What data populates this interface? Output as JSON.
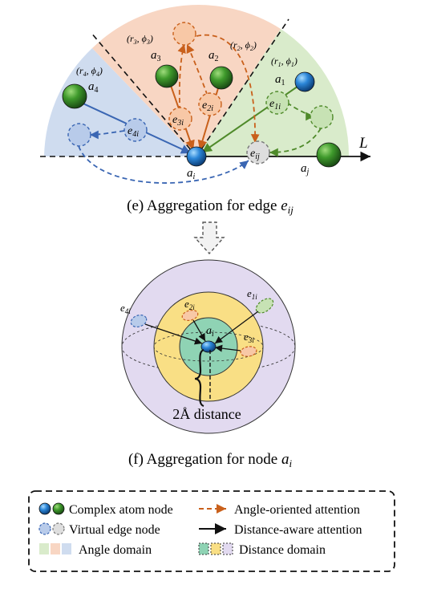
{
  "diagram_e": {
    "caption": "(e) Aggregation for edge e_ij",
    "caption_text": "(e) Aggregation for edge ",
    "caption_var": "e",
    "caption_sub": "ij",
    "axis_label": "L",
    "atoms": {
      "a1": {
        "base": "a",
        "sub": "1"
      },
      "a2": {
        "base": "a",
        "sub": "2"
      },
      "a3": {
        "base": "a",
        "sub": "3"
      },
      "a4": {
        "base": "a",
        "sub": "4"
      },
      "ai": {
        "base": "a",
        "sub": "i"
      },
      "aj": {
        "base": "a",
        "sub": "j"
      }
    },
    "polar_labels": {
      "p1": {
        "r": "r",
        "r_sub": "1",
        "phi": "ϕ",
        "phi_sub": "1"
      },
      "p2": {
        "r": "r",
        "r_sub": "2",
        "phi": "ϕ",
        "phi_sub": "2"
      },
      "p3": {
        "r": "r",
        "r_sub": "3",
        "phi": "ϕ",
        "phi_sub": "3"
      },
      "p4": {
        "r": "r",
        "r_sub": "4",
        "phi": "ϕ",
        "phi_sub": "4"
      }
    },
    "edges": {
      "e1i": {
        "base": "e",
        "sub": "1i"
      },
      "e2i": {
        "base": "e",
        "sub": "2i"
      },
      "e3i": {
        "base": "e",
        "sub": "3i"
      },
      "e4i": {
        "base": "e",
        "sub": "4i"
      },
      "eij": {
        "base": "e",
        "sub": "ij"
      }
    }
  },
  "diagram_f": {
    "caption_text": "(f) Aggregation for node ",
    "caption_var": "a",
    "caption_sub": "i",
    "center_atom": {
      "base": "a",
      "sub": "i"
    },
    "distance_label": "2Å distance",
    "edges": {
      "e1i": {
        "base": "e",
        "sub": "1i"
      },
      "e2i": {
        "base": "e",
        "sub": "2i"
      },
      "e3i": {
        "base": "e",
        "sub": "3i"
      },
      "e4i": {
        "base": "e",
        "sub": "4i"
      }
    }
  },
  "legend": {
    "complex_atom": "Complex atom node",
    "virtual_edge": "Virtual edge node",
    "angle_domain": "Angle domain",
    "angle_attention": "Angle-oriented attention",
    "distance_attention": "Distance-aware attention",
    "distance_domain": "Distance domain"
  },
  "colors": {
    "green_sector": "#d9ebcb",
    "orange_sector": "#f8d6c3",
    "blue_sector": "#cfdcef",
    "orange_arrow": "#c9601b",
    "green_arrow": "#4f8a2a",
    "blue_arrow": "#3a66b3",
    "sphere_outer": "#e2daf0",
    "sphere_middle": "#f9df85",
    "sphere_inner": "#8fd3b4"
  }
}
